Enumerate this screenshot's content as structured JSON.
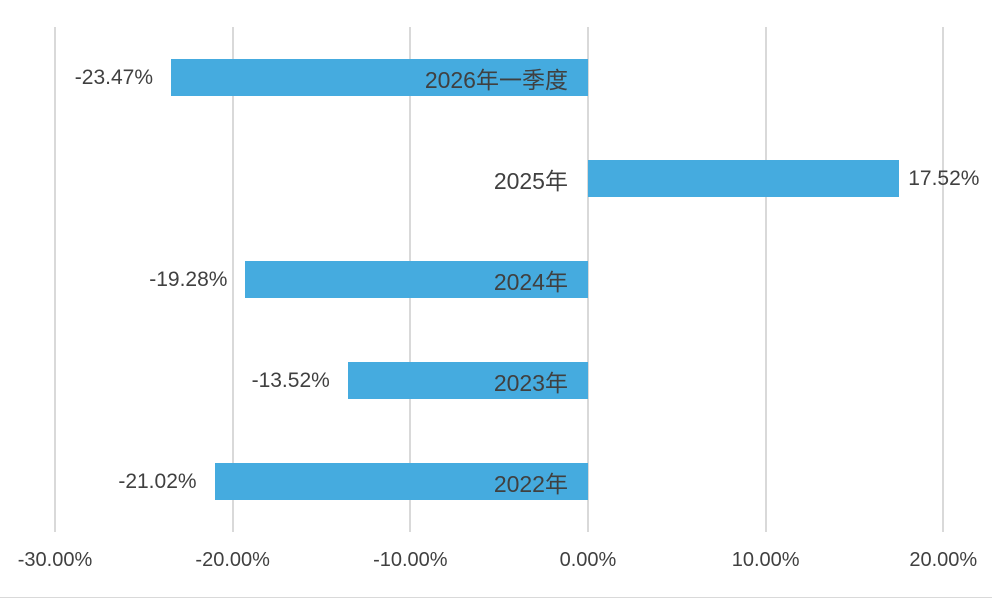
{
  "chart_data": {
    "type": "bar",
    "orientation": "horizontal",
    "title": "",
    "grid": true,
    "legend": "none",
    "categories": [
      "2026年一季度",
      "2025年",
      "2024年",
      "2023年",
      "2022年"
    ],
    "values": [
      -23.47,
      17.52,
      -19.28,
      -13.52,
      -21.02
    ],
    "data_labels": [
      "-23.47%",
      "17.52%",
      "-19.28%",
      "-13.52%",
      "-21.02%"
    ],
    "x_axis": {
      "min": -30,
      "max": 20,
      "ticks": [
        -30,
        -20,
        -10,
        0,
        10,
        20
      ],
      "tick_labels": [
        "-30.00%",
        "-20.00%",
        "-10.00%",
        "0.00%",
        "10.00%",
        "20.00%"
      ]
    },
    "colors": {
      "bar": "#45ABDF",
      "gridline": "#D9D9D9",
      "text": "#404040",
      "background": "#FFFFFF"
    }
  }
}
